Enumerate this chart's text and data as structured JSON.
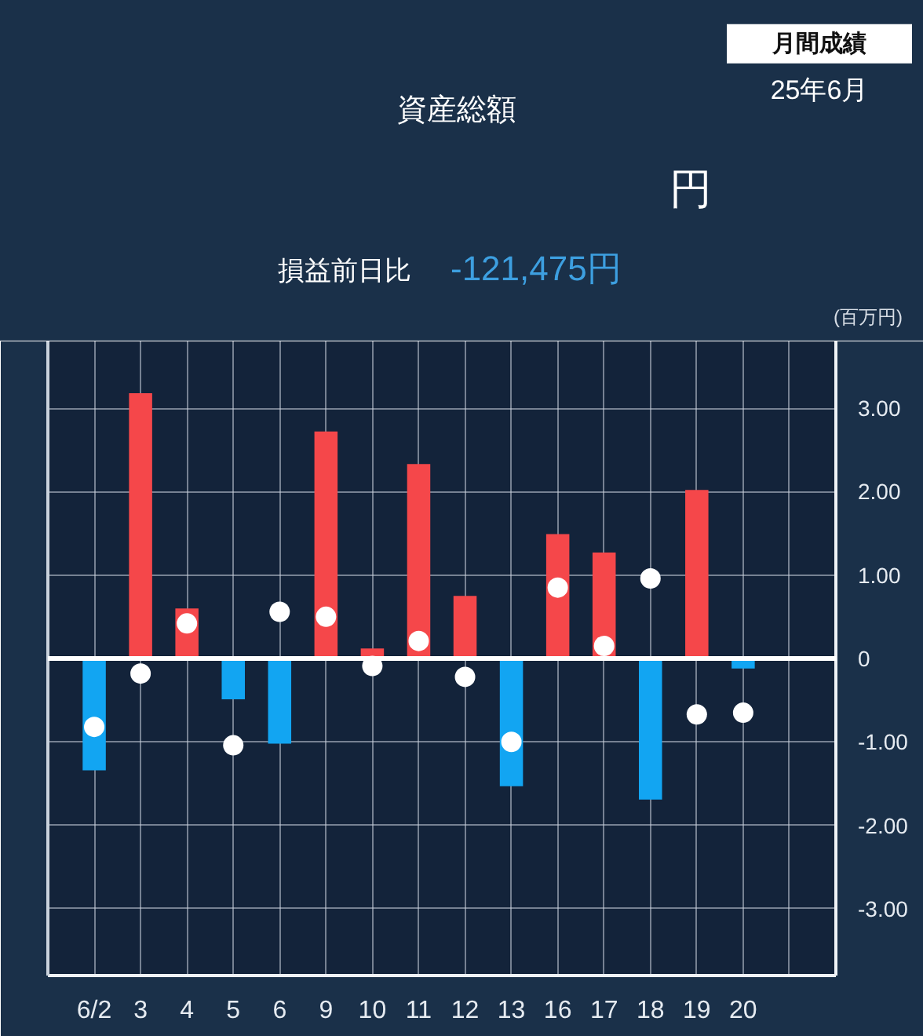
{
  "chart_data": {
    "type": "bar",
    "title": "資産総額",
    "ylabel": "(百万円)",
    "annotations": [
      "円",
      "損益前日比",
      "-121,475円",
      "月間成績",
      "25年6月"
    ],
    "categories": [
      "6/2",
      "3",
      "4",
      "5",
      "6",
      "9",
      "10",
      "11",
      "12",
      "13",
      "16",
      "17",
      "18",
      "19",
      "20",
      null
    ],
    "ylim": [
      -3.8,
      3.8
    ],
    "yticks": [
      {
        "value": 3,
        "label": "3.00"
      },
      {
        "value": 2,
        "label": "2.00"
      },
      {
        "value": 1,
        "label": "1.00"
      },
      0,
      {
        "value": -1,
        "label": "-1.00"
      },
      {
        "value": -2,
        "label": "-2.00"
      },
      {
        "value": -3,
        "label": "-3.00"
      }
    ],
    "grid": true,
    "ref_lines": [
      {
        "axis": "y",
        "value": 0,
        "color": "#ffffff"
      }
    ],
    "series": [
      {
        "colors": [
          "#12a5f2",
          "#f5474a",
          "#f5474a",
          "#12a5f2",
          "#12a5f2",
          "#f5474a",
          "#f5474a",
          "#f5474a",
          "#f5474a",
          "#12a5f2",
          "#f5474a",
          "#f5474a",
          "#12a5f2",
          "#f5474a",
          "#12a5f2",
          "#12a5f2"
        ],
        "values": [
          -1.34,
          3.18,
          0.6,
          -0.49,
          -1.02,
          2.72,
          0.12,
          2.33,
          0.75,
          -1.53,
          1.49,
          1.27,
          -1.69,
          2.02,
          -0.12,
          null
        ]
      },
      {
        "type": "scatter",
        "color": "#ffffff",
        "marker": "circle",
        "values": [
          -0.82,
          -0.18,
          0.42,
          -1.04,
          0.56,
          0.5,
          -0.09,
          0.21,
          -0.22,
          -1.0,
          0.85,
          0.15,
          0.96,
          -0.67,
          -0.65,
          null
        ]
      }
    ]
  }
}
